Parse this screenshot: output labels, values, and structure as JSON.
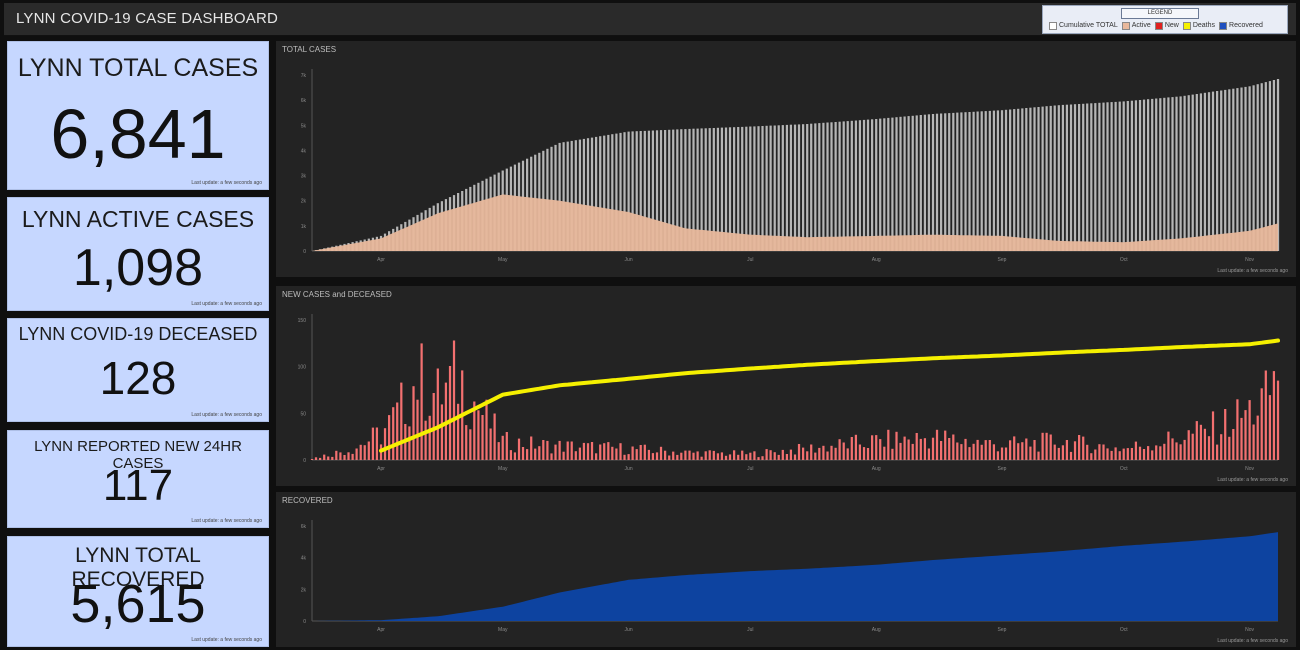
{
  "header": {
    "title": "LYNN COVID-19 CASE DASHBOARD",
    "legend": {
      "title": "LEGEND",
      "items": [
        {
          "label": "Cumulative TOTAL",
          "color": "#ffffff"
        },
        {
          "label": "Active",
          "color": "#e8b89c"
        },
        {
          "label": "New",
          "color": "#e02020"
        },
        {
          "label": "Deaths",
          "color": "#f5f000"
        },
        {
          "label": "Recovered",
          "color": "#1f4fbf"
        }
      ]
    }
  },
  "kpis": [
    {
      "label": "LYNN TOTAL CASES",
      "value": "6,841",
      "updated": "Last update: a few seconds ago"
    },
    {
      "label": "LYNN ACTIVE CASES",
      "value": "1,098",
      "updated": "Last update: a few seconds ago"
    },
    {
      "label": "LYNN COVID-19 DECEASED",
      "value": "128",
      "updated": "Last update: a few seconds ago"
    },
    {
      "label": "LYNN REPORTED NEW 24HR CASES",
      "value": "117",
      "updated": "Last update: a few seconds ago"
    },
    {
      "label": "LYNN TOTAL RECOVERED",
      "value": "5,615",
      "updated": "Last update: a few seconds ago"
    }
  ],
  "colors": {
    "kpi_bg": "#c6d7ff",
    "total": "#bfbfbf",
    "active": "#e8b89c",
    "new": "#ff7575",
    "deaths": "#f5f000",
    "recovered": "#0d46a8"
  },
  "chart_data": [
    {
      "type": "bar",
      "title": "TOTAL CASES",
      "x_ticks": [
        "Apr",
        "May",
        "Jun",
        "Jul",
        "Aug",
        "Sep",
        "Oct",
        "Nov"
      ],
      "y_ticks": [
        "0",
        "1k",
        "2k",
        "3k",
        "4k",
        "5k",
        "6k",
        "7k"
      ],
      "ylim": [
        0,
        7000
      ],
      "series": [
        {
          "name": "Cumulative TOTAL",
          "kind": "bar",
          "color": "#bfbfbf",
          "x": [
            "Mar 15",
            "Apr 1",
            "Apr 15",
            "May 1",
            "May 15",
            "Jun 1",
            "Jun 15",
            "Jul 1",
            "Jul 15",
            "Aug 1",
            "Aug 15",
            "Sep 1",
            "Sep 15",
            "Oct 1",
            "Oct 15",
            "Nov 1",
            "Nov 8"
          ],
          "values": [
            0,
            600,
            1900,
            3200,
            4300,
            4750,
            4850,
            4950,
            5050,
            5250,
            5450,
            5600,
            5800,
            5950,
            6150,
            6550,
            6841
          ]
        },
        {
          "name": "Active",
          "kind": "area",
          "color": "#e8b89c",
          "x": [
            "Mar 15",
            "Apr 1",
            "Apr 15",
            "May 1",
            "May 15",
            "Jun 1",
            "Jun 15",
            "Jul 1",
            "Jul 15",
            "Aug 1",
            "Aug 15",
            "Sep 1",
            "Sep 15",
            "Oct 1",
            "Oct 15",
            "Nov 1",
            "Nov 8"
          ],
          "values": [
            0,
            500,
            1500,
            2250,
            2000,
            1550,
            900,
            650,
            550,
            600,
            650,
            600,
            400,
            350,
            500,
            800,
            1098
          ]
        }
      ],
      "updated": "Last update: a few seconds ago"
    },
    {
      "type": "bar",
      "title": "NEW CASES and DECEASED",
      "x_ticks": [
        "Apr",
        "May",
        "Jun",
        "Jul",
        "Aug",
        "Sep",
        "Oct",
        "Nov"
      ],
      "y_ticks": [
        "0",
        "50",
        "100",
        "150"
      ],
      "ylim": [
        0,
        150
      ],
      "series": [
        {
          "name": "New",
          "kind": "bar",
          "color": "#ff7575",
          "x": [
            "Mar 15",
            "Mar 25",
            "Apr 1",
            "Apr 5",
            "Apr 10",
            "Apr 15",
            "Apr 20",
            "Apr 25",
            "May 1",
            "May 10",
            "Jun 1",
            "Jun 15",
            "Jul 1",
            "Jul 15",
            "Aug 1",
            "Aug 15",
            "Sep 1",
            "Sep 15",
            "Oct 1",
            "Oct 15",
            "Oct 25",
            "Nov 1",
            "Nov 5",
            "Nov 8"
          ],
          "values": [
            2,
            15,
            35,
            60,
            110,
            85,
            112,
            70,
            25,
            20,
            15,
            10,
            8,
            15,
            25,
            30,
            20,
            25,
            15,
            30,
            45,
            65,
            80,
            117
          ]
        },
        {
          "name": "Deaths",
          "kind": "line",
          "color": "#f5f000",
          "x": [
            "Apr 1",
            "Apr 15",
            "May 1",
            "May 15",
            "Jun 1",
            "Jun 15",
            "Jul 1",
            "Jul 15",
            "Aug 1",
            "Aug 15",
            "Sep 1",
            "Sep 15",
            "Oct 1",
            "Oct 15",
            "Nov 1",
            "Nov 8"
          ],
          "values": [
            10,
            35,
            70,
            80,
            87,
            93,
            98,
            102,
            106,
            109,
            112,
            115,
            118,
            121,
            124,
            128
          ]
        }
      ],
      "updated": "Last update: a few seconds ago"
    },
    {
      "type": "area",
      "title": "RECOVERED",
      "x_ticks": [
        "Apr",
        "May",
        "Jun",
        "Jul",
        "Aug",
        "Sep",
        "Oct",
        "Nov"
      ],
      "y_ticks": [
        "0",
        "2k",
        "4k",
        "6k"
      ],
      "ylim": [
        0,
        6000
      ],
      "series": [
        {
          "name": "Recovered",
          "kind": "area",
          "color": "#0d46a8",
          "x": [
            "Mar 15",
            "Apr 1",
            "Apr 15",
            "May 1",
            "May 15",
            "Jun 1",
            "Jun 15",
            "Jul 1",
            "Jul 15",
            "Aug 1",
            "Aug 15",
            "Sep 1",
            "Sep 15",
            "Oct 1",
            "Oct 15",
            "Nov 1",
            "Nov 8"
          ],
          "values": [
            0,
            50,
            300,
            900,
            1800,
            2600,
            2900,
            3150,
            3300,
            3550,
            3850,
            4150,
            4400,
            4750,
            5000,
            5350,
            5615
          ]
        }
      ],
      "updated": "Last update: a few seconds ago"
    }
  ]
}
